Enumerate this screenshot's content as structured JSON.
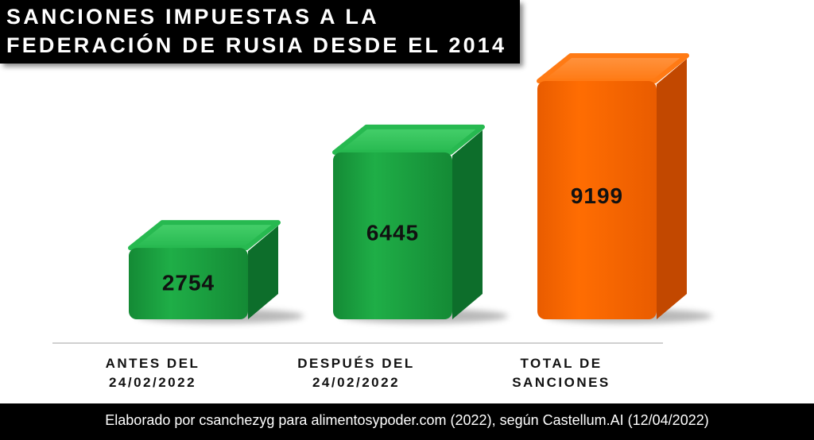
{
  "title": {
    "line1": "SANCIONES IMPUESTAS A LA",
    "line2": "FEDERACIÓN DE RUSIA DESDE EL 2014"
  },
  "footer": {
    "source": "Elaborado por csanchezyg para alimentosypoder.com (2022), según Castellum.AI (12/04/2022)"
  },
  "colors": {
    "green": "#19a442",
    "orange": "#ff6a00"
  },
  "chart_data": {
    "type": "bar",
    "title": "SANCIONES IMPUESTAS A LA FEDERACIÓN DE RUSIA DESDE EL 2014",
    "categories": [
      [
        "ANTES DEL",
        "24/02/2022"
      ],
      [
        "DESPUÉS DEL",
        "24/02/2022"
      ],
      [
        "TOTAL DE",
        "SANCIONES"
      ]
    ],
    "values": [
      2754,
      6445,
      9199
    ],
    "value_labels": [
      "2754",
      "6445",
      "9199"
    ],
    "bar_colors": [
      "green",
      "green",
      "orange"
    ],
    "grid": false,
    "legend": "none"
  }
}
